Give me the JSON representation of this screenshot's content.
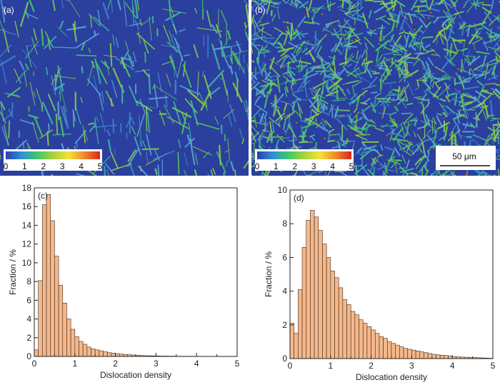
{
  "panels": [
    {
      "id": "a",
      "label": "(a)",
      "kind": "map",
      "colorbar_ticks": [
        "0",
        "1",
        "2",
        "3",
        "4",
        "5"
      ]
    },
    {
      "id": "b",
      "label": "(b)",
      "kind": "map",
      "colorbar_ticks": [
        "0",
        "1",
        "2",
        "3",
        "4",
        "5"
      ],
      "scalebar": "50 μm"
    }
  ],
  "colorbar_colors": [
    "#2a3fb0",
    "#2f8fd8",
    "#3ec86a",
    "#a6d43a",
    "#f2e23a",
    "#f08a2a",
    "#d9261c"
  ],
  "map_background": "#2b3f9e",
  "bar_fill": "#f5b88a",
  "bar_stroke": "#3a2a20",
  "chart_data": [
    {
      "type": "bar",
      "panel_label": "(c)",
      "xlabel": "Dislocation density",
      "ylabel": "Fraction / %",
      "xlim": [
        0,
        5
      ],
      "ylim": [
        0,
        18
      ],
      "xticks": [
        0,
        1,
        2,
        3,
        4,
        5
      ],
      "yticks": [
        0,
        2,
        4,
        6,
        8,
        10,
        12,
        14,
        16,
        18
      ],
      "bin_width": 0.1,
      "x": [
        0.05,
        0.15,
        0.25,
        0.35,
        0.45,
        0.55,
        0.65,
        0.75,
        0.85,
        0.95,
        1.05,
        1.15,
        1.25,
        1.35,
        1.45,
        1.55,
        1.65,
        1.75,
        1.85,
        1.95,
        2.05,
        2.15,
        2.25,
        2.35,
        2.45,
        2.55,
        2.65,
        2.75,
        2.85,
        2.95,
        3.05,
        3.15,
        3.25,
        3.35,
        3.45,
        3.55,
        3.65,
        3.75,
        3.85,
        3.95,
        4.05,
        4.15,
        4.25,
        4.35,
        4.45,
        4.55,
        4.65,
        4.75,
        4.85,
        4.95
      ],
      "values": [
        0.7,
        8.1,
        16.2,
        17.3,
        14.5,
        10.7,
        7.6,
        5.7,
        4.0,
        2.9,
        2.1,
        1.6,
        1.3,
        1.0,
        0.8,
        0.7,
        0.6,
        0.5,
        0.4,
        0.35,
        0.3,
        0.25,
        0.2,
        0.18,
        0.15,
        0.12,
        0.1,
        0.08,
        0.07,
        0.06,
        0.05,
        0.04,
        0.04,
        0.03,
        0.03,
        0.02,
        0.02,
        0.02,
        0.02,
        0.01,
        0.01,
        0.01,
        0.01,
        0.01,
        0.01,
        0.01,
        0.01,
        0.01,
        0.01,
        0.01
      ]
    },
    {
      "type": "bar",
      "panel_label": "(d)",
      "xlabel": "Dislocation density",
      "ylabel": "Fraction / %",
      "xlim": [
        0,
        5
      ],
      "ylim": [
        0,
        10
      ],
      "xticks": [
        0,
        1,
        2,
        3,
        4,
        5
      ],
      "yticks": [
        0,
        2,
        4,
        6,
        8,
        10
      ],
      "bin_width": 0.1,
      "x": [
        0.05,
        0.15,
        0.25,
        0.35,
        0.45,
        0.55,
        0.65,
        0.75,
        0.85,
        0.95,
        1.05,
        1.15,
        1.25,
        1.35,
        1.45,
        1.55,
        1.65,
        1.75,
        1.85,
        1.95,
        2.05,
        2.15,
        2.25,
        2.35,
        2.45,
        2.55,
        2.65,
        2.75,
        2.85,
        2.95,
        3.05,
        3.15,
        3.25,
        3.35,
        3.45,
        3.55,
        3.65,
        3.75,
        3.85,
        3.95,
        4.05,
        4.15,
        4.25,
        4.35,
        4.45,
        4.55,
        4.65,
        4.75,
        4.85,
        4.95
      ],
      "values": [
        2.1,
        1.5,
        4.1,
        6.6,
        8.2,
        8.8,
        8.4,
        7.6,
        6.8,
        6.0,
        5.2,
        4.8,
        4.2,
        3.5,
        3.2,
        2.8,
        2.6,
        2.3,
        2.1,
        1.9,
        1.7,
        1.5,
        1.3,
        1.2,
        1.0,
        0.9,
        0.8,
        0.7,
        0.6,
        0.55,
        0.5,
        0.45,
        0.4,
        0.35,
        0.3,
        0.25,
        0.22,
        0.2,
        0.18,
        0.15,
        0.12,
        0.1,
        0.09,
        0.08,
        0.07,
        0.06,
        0.05,
        0.04,
        0.03,
        0.02
      ]
    }
  ]
}
